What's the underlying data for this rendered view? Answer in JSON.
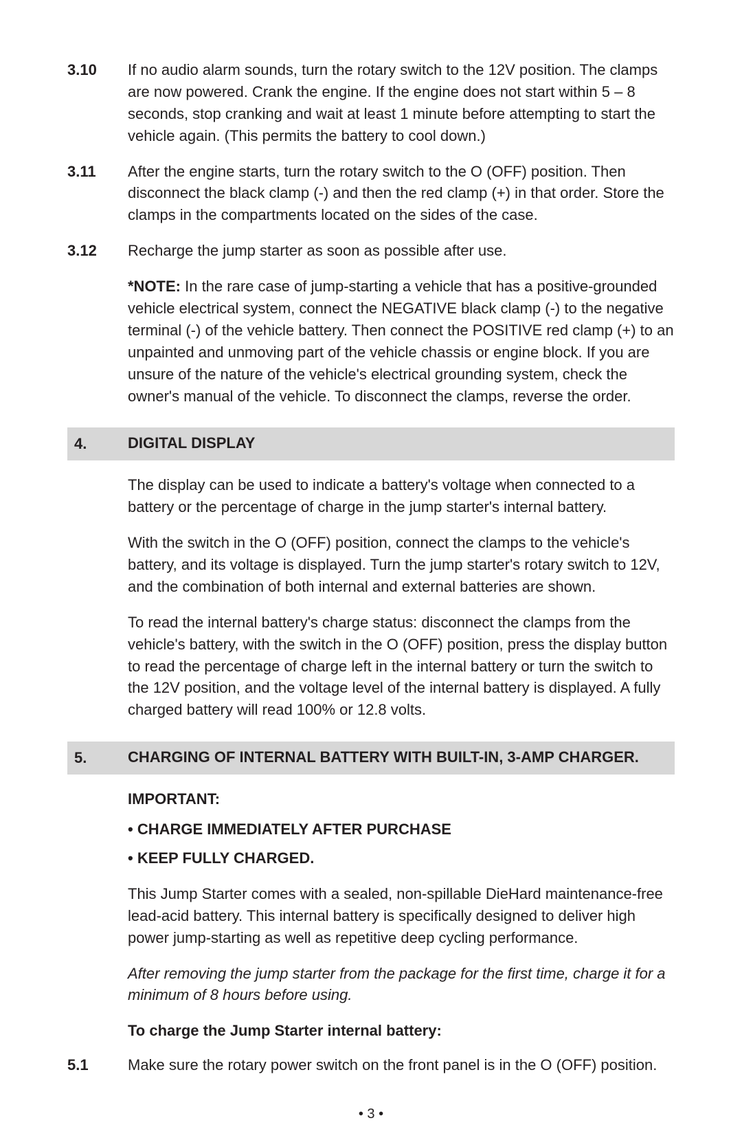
{
  "colors": {
    "text": "#231f20",
    "page_bg": "#ffffff",
    "section_bar_bg": "#d7d7d7"
  },
  "typography": {
    "body_fontsize_pt": 16,
    "body_line_height": 1.45,
    "bold_weight": 700,
    "font_family": "Arial, Helvetica, sans-serif"
  },
  "items": {
    "i310": {
      "num": "3.10",
      "text": "If no audio alarm sounds, turn the rotary switch to the 12V position. The clamps are now powered. Crank the engine. If the engine does not start within 5 – 8 seconds, stop cranking and wait at least 1 minute before attempting to start the vehicle again. (This permits the battery to cool down.)"
    },
    "i311": {
      "num": "3.11",
      "text": "After the engine starts, turn the rotary switch to the O (OFF) position. Then disconnect the black clamp (-) and then the red clamp (+) in that order. Store the clamps in the compartments located on the sides of the case."
    },
    "i312": {
      "num": "3.12",
      "text": "Recharge the jump starter as soon as possible after use.",
      "note_lead": "*NOTE:",
      "note_body": " In the rare case of jump-starting a vehicle that has a positive-grounded vehicle electrical system, connect the NEGATIVE black clamp (-) to the negative terminal (-) of the vehicle battery. Then connect the POSITIVE red clamp (+) to an unpainted and unmoving part of the vehicle chassis or engine block. If you are unsure of the nature of the vehicle's electrical grounding system, check the owner's manual of the vehicle. To disconnect the clamps, reverse the order."
    }
  },
  "section4": {
    "num": "4.",
    "title": "DIGITAL DISPLAY",
    "p1": "The display can be used to indicate a battery's voltage when connected to a battery or the percentage of charge in the jump starter's internal battery.",
    "p2": "With the switch in the O (OFF) position, connect the clamps to the vehicle's battery, and its voltage is displayed. Turn the jump starter's rotary switch to 12V, and the combination of both internal and external batteries are shown.",
    "p3": "To read the internal battery's charge status: disconnect the clamps from the vehicle's battery, with the switch in the O (OFF) position, press the display button to read the percentage of charge left in the internal battery or turn the switch to the 12V position, and the voltage level of the internal battery is displayed. A fully charged battery will read 100% or 12.8 volts."
  },
  "section5": {
    "num": "5.",
    "title": "CHARGING OF INTERNAL BATTERY WITH BUILT-IN, 3-AMP CHARGER.",
    "important": "IMPORTANT:",
    "bullet1": "• CHARGE IMMEDIATELY AFTER PURCHASE",
    "bullet2": "• KEEP FULLY CHARGED.",
    "p1": "This Jump Starter comes with a sealed, non-spillable DieHard maintenance-free lead-acid battery. This internal battery is specifically designed to deliver high power jump-starting as well as repetitive deep cycling performance.",
    "p2_italic": "After removing the jump starter from the package for the first time, charge it for a minimum of 8 hours before using.",
    "subhead": "To charge the Jump Starter internal battery:",
    "i51": {
      "num": "5.1",
      "text": "Make sure the rotary power switch on the front panel is in the O (OFF) position."
    }
  },
  "page_number": "• 3 •"
}
